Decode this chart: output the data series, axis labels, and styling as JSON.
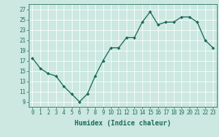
{
  "x": [
    0,
    1,
    2,
    3,
    4,
    5,
    6,
    7,
    8,
    9,
    10,
    11,
    12,
    13,
    14,
    15,
    16,
    17,
    18,
    19,
    20,
    21,
    22,
    23
  ],
  "y": [
    17.5,
    15.5,
    14.5,
    14.0,
    12.0,
    10.5,
    9.0,
    10.5,
    14.0,
    17.0,
    19.5,
    19.5,
    21.5,
    21.5,
    24.5,
    26.5,
    24.0,
    24.5,
    24.5,
    25.5,
    25.5,
    24.5,
    21.0,
    19.5
  ],
  "line_color": "#1a6b5a",
  "marker": "D",
  "marker_size": 2.0,
  "bg_color": "#cce8e0",
  "grid_color": "#ffffff",
  "xlabel": "Humidex (Indice chaleur)",
  "xlim": [
    -0.5,
    23.5
  ],
  "ylim": [
    8,
    28
  ],
  "yticks": [
    9,
    11,
    13,
    15,
    17,
    19,
    21,
    23,
    25,
    27
  ],
  "xticks": [
    0,
    1,
    2,
    3,
    4,
    5,
    6,
    7,
    8,
    9,
    10,
    11,
    12,
    13,
    14,
    15,
    16,
    17,
    18,
    19,
    20,
    21,
    22,
    23
  ],
  "tick_color": "#1a6b5a",
  "label_fontsize": 5.5,
  "xlabel_fontsize": 7.0,
  "linewidth": 1.0
}
